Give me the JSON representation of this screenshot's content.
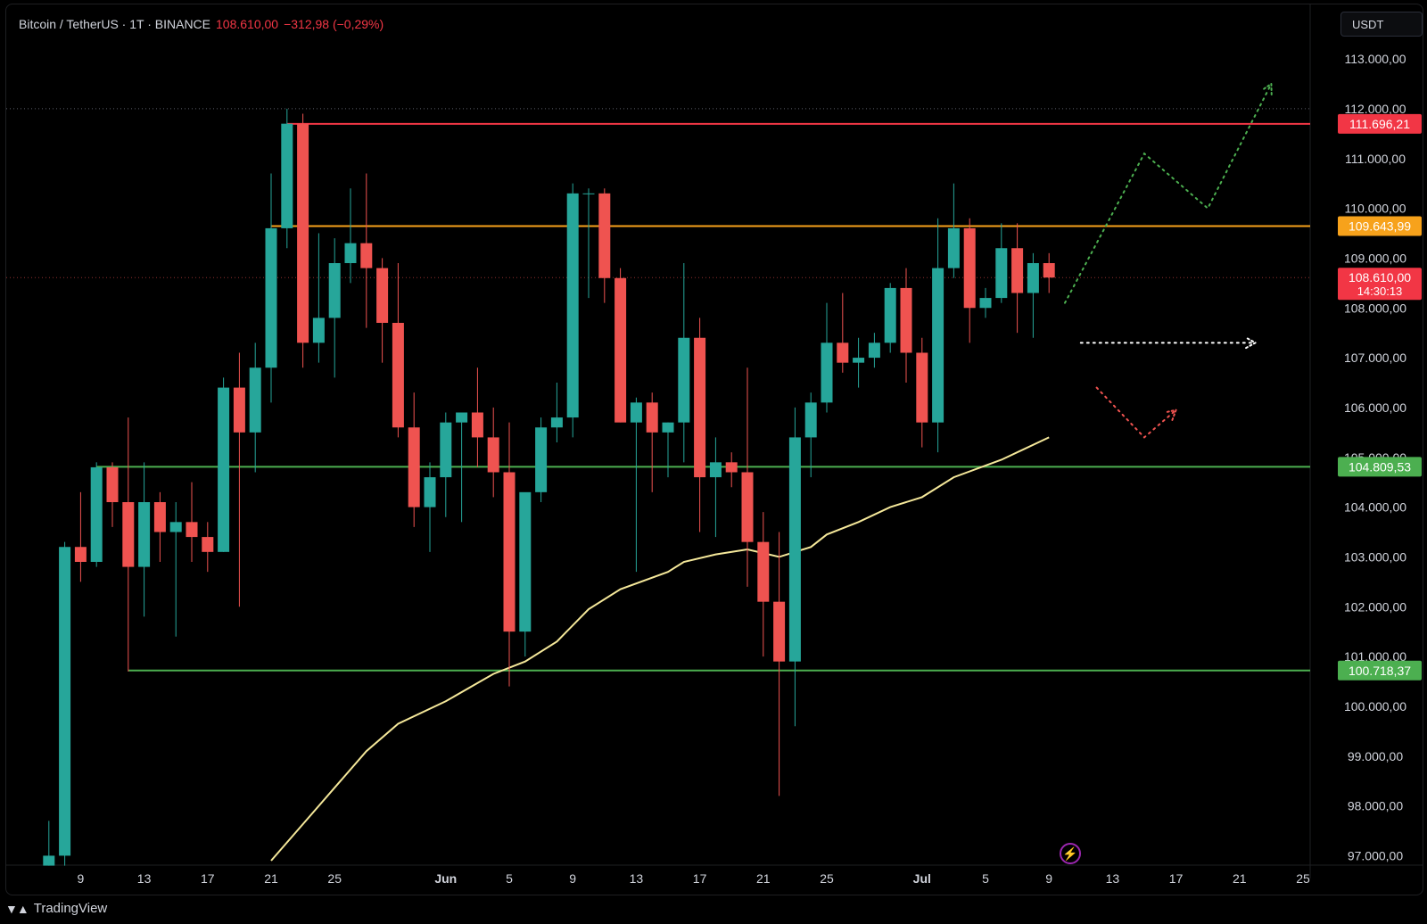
{
  "header": {
    "symbol": "Bitcoin / TetherUS · 1T · BINANCE",
    "price": "108.610,00",
    "change": "−312,98 (−0,29%)"
  },
  "currency_button": "USDT",
  "branding": {
    "name": "TradingView"
  },
  "icons": {
    "lightning": "lightning-icon",
    "logo": "tradingview-logo-icon"
  },
  "colors": {
    "bull": "#26a69a",
    "bear": "#ef5350",
    "resistance": "#f23645",
    "mid_level": "#f7a21b",
    "support": "#4caf50",
    "ma": "#f5e89a",
    "scenario_up": "#4caf50",
    "scenario_flat": "#ffffff",
    "scenario_down": "#ef5350"
  },
  "chart_data": {
    "type": "candlestick",
    "title": "Bitcoin / TetherUS · 1T · BINANCE",
    "x_ticks": [
      "9",
      "13",
      "17",
      "21",
      "25",
      "Jun",
      "5",
      "9",
      "13",
      "17",
      "21",
      "25",
      "Jul",
      "5",
      "9",
      "13",
      "17",
      "21",
      "25"
    ],
    "y_ticks": [
      "97.000,00",
      "98.000,00",
      "99.000,00",
      "100.000,00",
      "101.000,00",
      "102.000,00",
      "103.000,00",
      "104.000,00",
      "105.000,00",
      "106.000,00",
      "107.000,00",
      "108.000,00",
      "109.000,00",
      "110.000,00",
      "111.000,00",
      "112.000,00",
      "113.000,00"
    ],
    "y_range": [
      96900,
      113700
    ],
    "x_range_days": [
      "2025-05-06",
      "2025-07-25"
    ],
    "candles": [
      {
        "date": "2025-05-07",
        "o": 96800,
        "h": 97700,
        "l": 96800,
        "c": 97000
      },
      {
        "date": "2025-05-08",
        "o": 97000,
        "h": 103300,
        "l": 96800,
        "c": 103200
      },
      {
        "date": "2025-05-09",
        "o": 103200,
        "h": 104300,
        "l": 102500,
        "c": 102900
      },
      {
        "date": "2025-05-10",
        "o": 102900,
        "h": 104900,
        "l": 102800,
        "c": 104800
      },
      {
        "date": "2025-05-11",
        "o": 104800,
        "h": 104900,
        "l": 103600,
        "c": 104100
      },
      {
        "date": "2025-05-12",
        "o": 104100,
        "h": 105800,
        "l": 100700,
        "c": 102800
      },
      {
        "date": "2025-05-13",
        "o": 102800,
        "h": 104900,
        "l": 101800,
        "c": 104100
      },
      {
        "date": "2025-05-14",
        "o": 104100,
        "h": 104300,
        "l": 102900,
        "c": 103500
      },
      {
        "date": "2025-05-15",
        "o": 103500,
        "h": 104100,
        "l": 101400,
        "c": 103700
      },
      {
        "date": "2025-05-16",
        "o": 103700,
        "h": 104500,
        "l": 102900,
        "c": 103400
      },
      {
        "date": "2025-05-17",
        "o": 103400,
        "h": 103700,
        "l": 102700,
        "c": 103100
      },
      {
        "date": "2025-05-18",
        "o": 103100,
        "h": 106600,
        "l": 103100,
        "c": 106400
      },
      {
        "date": "2025-05-19",
        "o": 106400,
        "h": 107100,
        "l": 102000,
        "c": 105500
      },
      {
        "date": "2025-05-20",
        "o": 105500,
        "h": 107300,
        "l": 104700,
        "c": 106800
      },
      {
        "date": "2025-05-21",
        "o": 106800,
        "h": 110700,
        "l": 106100,
        "c": 109600
      },
      {
        "date": "2025-05-22",
        "o": 109600,
        "h": 112000,
        "l": 109200,
        "c": 111700
      },
      {
        "date": "2025-05-23",
        "o": 111700,
        "h": 111900,
        "l": 106800,
        "c": 107300
      },
      {
        "date": "2025-05-24",
        "o": 107300,
        "h": 109500,
        "l": 106900,
        "c": 107800
      },
      {
        "date": "2025-05-25",
        "o": 107800,
        "h": 109400,
        "l": 106600,
        "c": 108900
      },
      {
        "date": "2025-05-26",
        "o": 108900,
        "h": 110400,
        "l": 108500,
        "c": 109300
      },
      {
        "date": "2025-05-27",
        "o": 109300,
        "h": 110700,
        "l": 107600,
        "c": 108800
      },
      {
        "date": "2025-05-28",
        "o": 108800,
        "h": 109000,
        "l": 106900,
        "c": 107700
      },
      {
        "date": "2025-05-29",
        "o": 107700,
        "h": 108900,
        "l": 105400,
        "c": 105600
      },
      {
        "date": "2025-05-30",
        "o": 105600,
        "h": 106300,
        "l": 103600,
        "c": 104000
      },
      {
        "date": "2025-05-31",
        "o": 104000,
        "h": 104900,
        "l": 103100,
        "c": 104600
      },
      {
        "date": "2025-06-01",
        "o": 104600,
        "h": 105900,
        "l": 103800,
        "c": 105700
      },
      {
        "date": "2025-06-02",
        "o": 105700,
        "h": 105900,
        "l": 103700,
        "c": 105900
      },
      {
        "date": "2025-06-03",
        "o": 105900,
        "h": 106800,
        "l": 104800,
        "c": 105400
      },
      {
        "date": "2025-06-04",
        "o": 105400,
        "h": 106000,
        "l": 104200,
        "c": 104700
      },
      {
        "date": "2025-06-05",
        "o": 104700,
        "h": 105700,
        "l": 100400,
        "c": 101500
      },
      {
        "date": "2025-06-06",
        "o": 101500,
        "h": 104200,
        "l": 101000,
        "c": 104300
      },
      {
        "date": "2025-06-07",
        "o": 104300,
        "h": 105800,
        "l": 104100,
        "c": 105600
      },
      {
        "date": "2025-06-08",
        "o": 105600,
        "h": 106500,
        "l": 105300,
        "c": 105800
      },
      {
        "date": "2025-06-09",
        "o": 105800,
        "h": 110500,
        "l": 105400,
        "c": 110300
      },
      {
        "date": "2025-06-10",
        "o": 110300,
        "h": 110400,
        "l": 108200,
        "c": 110300
      },
      {
        "date": "2025-06-11",
        "o": 110300,
        "h": 110400,
        "l": 108100,
        "c": 108600
      },
      {
        "date": "2025-06-12",
        "o": 108600,
        "h": 108800,
        "l": 105700,
        "c": 105700
      },
      {
        "date": "2025-06-13",
        "o": 105700,
        "h": 106200,
        "l": 102700,
        "c": 106100
      },
      {
        "date": "2025-06-14",
        "o": 106100,
        "h": 106300,
        "l": 104300,
        "c": 105500
      },
      {
        "date": "2025-06-15",
        "o": 105500,
        "h": 105700,
        "l": 104600,
        "c": 105700
      },
      {
        "date": "2025-06-16",
        "o": 105700,
        "h": 108900,
        "l": 104900,
        "c": 107400
      },
      {
        "date": "2025-06-17",
        "o": 107400,
        "h": 107800,
        "l": 103500,
        "c": 104600
      },
      {
        "date": "2025-06-18",
        "o": 104600,
        "h": 105400,
        "l": 103400,
        "c": 104900
      },
      {
        "date": "2025-06-19",
        "o": 104900,
        "h": 105100,
        "l": 104400,
        "c": 104700
      },
      {
        "date": "2025-06-20",
        "o": 104700,
        "h": 106800,
        "l": 102400,
        "c": 103300
      },
      {
        "date": "2025-06-21",
        "o": 103300,
        "h": 103900,
        "l": 101000,
        "c": 102100
      },
      {
        "date": "2025-06-22",
        "o": 102100,
        "h": 103500,
        "l": 98200,
        "c": 100900
      },
      {
        "date": "2025-06-23",
        "o": 100900,
        "h": 106000,
        "l": 99600,
        "c": 105400
      },
      {
        "date": "2025-06-24",
        "o": 105400,
        "h": 106300,
        "l": 104600,
        "c": 106100
      },
      {
        "date": "2025-06-25",
        "o": 106100,
        "h": 108100,
        "l": 105900,
        "c": 107300
      },
      {
        "date": "2025-06-26",
        "o": 107300,
        "h": 108300,
        "l": 106700,
        "c": 106900
      },
      {
        "date": "2025-06-27",
        "o": 106900,
        "h": 107400,
        "l": 106400,
        "c": 107000
      },
      {
        "date": "2025-06-28",
        "o": 107000,
        "h": 107500,
        "l": 106800,
        "c": 107300
      },
      {
        "date": "2025-06-29",
        "o": 107300,
        "h": 108500,
        "l": 107100,
        "c": 108400
      },
      {
        "date": "2025-06-30",
        "o": 108400,
        "h": 108800,
        "l": 106500,
        "c": 107100
      },
      {
        "date": "2025-07-01",
        "o": 107100,
        "h": 107400,
        "l": 105200,
        "c": 105700
      },
      {
        "date": "2025-07-02",
        "o": 105700,
        "h": 109800,
        "l": 105100,
        "c": 108800
      },
      {
        "date": "2025-07-03",
        "o": 108800,
        "h": 110500,
        "l": 108600,
        "c": 109600
      },
      {
        "date": "2025-07-04",
        "o": 109600,
        "h": 109800,
        "l": 107300,
        "c": 108000
      },
      {
        "date": "2025-07-05",
        "o": 108000,
        "h": 108400,
        "l": 107800,
        "c": 108200
      },
      {
        "date": "2025-07-06",
        "o": 108200,
        "h": 109700,
        "l": 108100,
        "c": 109200
      },
      {
        "date": "2025-07-07",
        "o": 109200,
        "h": 109700,
        "l": 107500,
        "c": 108300
      },
      {
        "date": "2025-07-08",
        "o": 108300,
        "h": 109100,
        "l": 107400,
        "c": 108900
      },
      {
        "date": "2025-07-09",
        "o": 108900,
        "h": 109100,
        "l": 108300,
        "c": 108610
      }
    ],
    "moving_average": [
      {
        "date": "2025-05-21",
        "v": 96900
      },
      {
        "date": "2025-05-24",
        "v": 98000
      },
      {
        "date": "2025-05-27",
        "v": 99100
      },
      {
        "date": "2025-05-29",
        "v": 99650
      },
      {
        "date": "2025-06-01",
        "v": 100100
      },
      {
        "date": "2025-06-04",
        "v": 100650
      },
      {
        "date": "2025-06-06",
        "v": 100900
      },
      {
        "date": "2025-06-08",
        "v": 101300
      },
      {
        "date": "2025-06-10",
        "v": 101950
      },
      {
        "date": "2025-06-12",
        "v": 102350
      },
      {
        "date": "2025-06-15",
        "v": 102700
      },
      {
        "date": "2025-06-16",
        "v": 102900
      },
      {
        "date": "2025-06-18",
        "v": 103050
      },
      {
        "date": "2025-06-20",
        "v": 103150
      },
      {
        "date": "2025-06-22",
        "v": 103000
      },
      {
        "date": "2025-06-24",
        "v": 103200
      },
      {
        "date": "2025-06-25",
        "v": 103450
      },
      {
        "date": "2025-06-27",
        "v": 103700
      },
      {
        "date": "2025-06-29",
        "v": 104000
      },
      {
        "date": "2025-07-01",
        "v": 104200
      },
      {
        "date": "2025-07-03",
        "v": 104600
      },
      {
        "date": "2025-07-06",
        "v": 104950
      },
      {
        "date": "2025-07-09",
        "v": 105400
      }
    ],
    "horizontal_lines": [
      {
        "name": "resistance-line",
        "value": 111696.21,
        "label": "111.696,21",
        "color": "#f23645",
        "start": "2025-05-22"
      },
      {
        "name": "mid-level-line",
        "value": 109643.99,
        "label": "109.643,99",
        "color": "#f7a21b",
        "start": "2025-05-21"
      },
      {
        "name": "support-line-upper",
        "value": 104809.53,
        "label": "104.809,53",
        "color": "#4caf50",
        "start": "2025-05-10"
      },
      {
        "name": "support-line-lower",
        "value": 100718.37,
        "label": "100.718,37",
        "color": "#4caf50",
        "start": "2025-05-12"
      }
    ],
    "high_marker": 112000,
    "current_price": {
      "value": 108610,
      "label": "108.610,00",
      "countdown": "14:30:13"
    },
    "scenario_paths": [
      {
        "name": "bullish-scenario-path",
        "color": "#4caf50",
        "points": [
          {
            "date": "2025-07-10",
            "v": 108100
          },
          {
            "date": "2025-07-15",
            "v": 111100
          },
          {
            "date": "2025-07-19",
            "v": 110000
          },
          {
            "date": "2025-07-23",
            "v": 112500
          }
        ]
      },
      {
        "name": "sideways-scenario-path",
        "color": "#ffffff",
        "points": [
          {
            "date": "2025-07-11",
            "v": 107300
          },
          {
            "date": "2025-07-22",
            "v": 107300
          }
        ]
      },
      {
        "name": "bearish-scenario-path",
        "color": "#ef5350",
        "points": [
          {
            "date": "2025-07-12",
            "v": 106400
          },
          {
            "date": "2025-07-15",
            "v": 105400
          },
          {
            "date": "2025-07-17",
            "v": 105950
          }
        ]
      }
    ]
  }
}
